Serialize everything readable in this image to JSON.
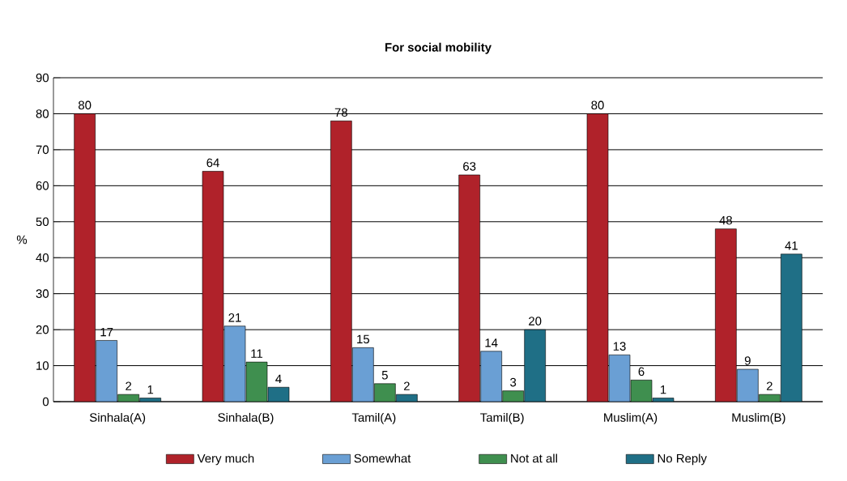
{
  "chart_data": {
    "type": "bar",
    "title": "For social mobility",
    "ylabel": "%",
    "categories": [
      "Sinhala(A)",
      "Sinhala(B)",
      "Tamil(A)",
      "Tamil(B)",
      "Muslim(A)",
      "Muslim(B)"
    ],
    "series": [
      {
        "name": "Very much",
        "color": "#b0222a",
        "values": [
          80,
          64,
          78,
          63,
          80,
          48
        ]
      },
      {
        "name": "Somewhat",
        "color": "#6a9fd4",
        "values": [
          17,
          21,
          15,
          14,
          13,
          9
        ]
      },
      {
        "name": "Not at all",
        "color": "#3f8f4f",
        "values": [
          2,
          11,
          5,
          3,
          6,
          2
        ]
      },
      {
        "name": "No Reply",
        "color": "#1f6f86",
        "values": [
          1,
          4,
          2,
          20,
          1,
          41
        ]
      }
    ],
    "ylim": [
      0,
      90
    ],
    "yticks": [
      0,
      10,
      20,
      30,
      40,
      50,
      60,
      70,
      80,
      90
    ],
    "grid": "y",
    "legend": "bottom",
    "data_labels": true
  }
}
